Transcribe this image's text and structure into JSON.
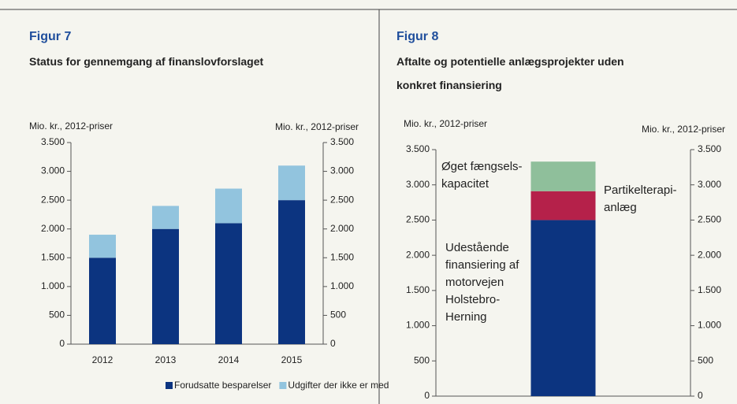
{
  "chart_data": [
    {
      "type": "bar",
      "stacked": true,
      "title": "Figur 7",
      "subtitle": "Status for gennemgang af finanslovforslaget",
      "y_label": "Mio. kr., 2012-priser",
      "y2_label": "Mio. kr., 2012-priser",
      "categories": [
        "2012",
        "2013",
        "2014",
        "2015"
      ],
      "series": [
        {
          "name": "Forudsatte besparelser",
          "color": "#0c3480",
          "values": [
            1500,
            2000,
            2100,
            2500
          ]
        },
        {
          "name": "Udgifter der ikke er med",
          "color": "#92c4de",
          "values": [
            400,
            400,
            600,
            600
          ]
        }
      ],
      "ylim": [
        0,
        3500
      ],
      "yticks": [
        0,
        500,
        {
          "value": 1000,
          "label": "1.000"
        },
        {
          "value": 1500,
          "label": "1.500"
        },
        {
          "value": 2000,
          "label": "2.000"
        },
        {
          "value": 2500,
          "label": "2.500"
        },
        {
          "value": 3000,
          "label": "3.000"
        },
        {
          "value": 3500,
          "label": "3.500"
        }
      ],
      "y2lim": [
        0,
        3500
      ],
      "y2ticks": [
        0,
        500,
        {
          "value": 1000,
          "label": "1.000"
        },
        {
          "value": 1500,
          "label": "1.500"
        },
        {
          "value": 2000,
          "label": "2.000"
        },
        {
          "value": 2500,
          "label": "2.500"
        },
        {
          "value": 3000,
          "label": "3.000"
        },
        {
          "value": 3500,
          "label": "3.500"
        }
      ],
      "legend": "bottom"
    },
    {
      "type": "bar",
      "stacked": true,
      "title": "Figur 8",
      "subtitle": "Aftalte og potentielle anlægsprojekter uden\nkonkret finansiering",
      "y_label": "Mio. kr., 2012-priser",
      "y2_label": "Mio. kr., 2012-priser",
      "categories": [
        null
      ],
      "series": [
        {
          "name": "Udestående\nfinansiering af\nmotorvejen\nHolstebro-\nHerning",
          "color": "#0c3480",
          "values": [
            2500
          ]
        },
        {
          "name": "Partikelterapi-\nanlæg",
          "color": "#b5214a",
          "values": [
            410
          ]
        },
        {
          "name": "Øget fængsels-\nkapacitet",
          "color": "#8fbf9b",
          "values": [
            420
          ]
        }
      ],
      "ylim": [
        0,
        3500
      ],
      "yticks": [
        0,
        500,
        {
          "value": 1000,
          "label": "1.000"
        },
        {
          "value": 1500,
          "label": "1.500"
        },
        {
          "value": 2000,
          "label": "2.000"
        },
        {
          "value": 2500,
          "label": "2.500"
        },
        {
          "value": 3000,
          "label": "3.000"
        },
        {
          "value": 3500,
          "label": "3.500"
        }
      ],
      "y2lim": [
        0,
        3500
      ],
      "y2ticks": [
        0,
        500,
        {
          "value": 1000,
          "label": "1.000"
        },
        {
          "value": 1500,
          "label": "1.500"
        },
        {
          "value": 2000,
          "label": "2.000"
        },
        {
          "value": 2500,
          "label": "2.500"
        },
        {
          "value": 3000,
          "label": "3.000"
        },
        {
          "value": 3500,
          "label": "3.500"
        }
      ],
      "legend": "annotations"
    }
  ]
}
